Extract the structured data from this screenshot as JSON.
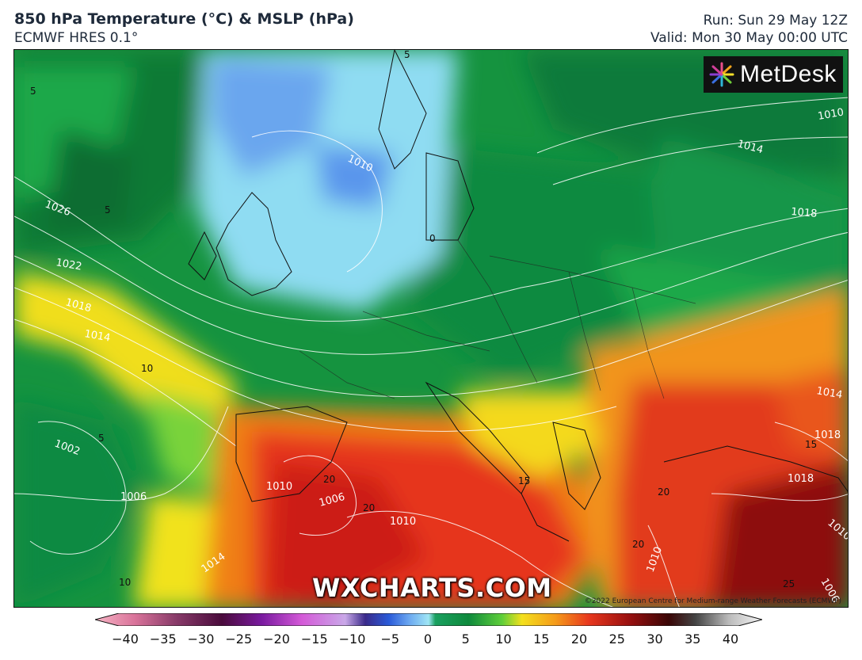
{
  "header": {
    "title": "850 hPa Temperature (°C) & MSLP (hPa)",
    "model": "ECMWF HRES 0.1°",
    "run": "Run: Sun 29 May 12Z",
    "valid": "Valid: Mon 30 May 00:00 UTC"
  },
  "branding": {
    "logo_text": "MetDesk",
    "watermark": "WXCHARTS.COM",
    "copyright": "©2022 European Centre for Medium-range Weather Forecasts (ECMWF)"
  },
  "colors": {
    "cold_blue": "#6aa6f0",
    "cyan": "#9fe6f5",
    "dark_green": "#0e7a3c",
    "green": "#1aa350",
    "light_green": "#5fcf3a",
    "yellow": "#f4e01c",
    "orange": "#f59b1a",
    "red": "#e8381e",
    "dark_red": "#9a1010"
  },
  "colorbar": {
    "ticks": [
      "−40",
      "−35",
      "−30",
      "−25",
      "−20",
      "−15",
      "−10",
      "−5",
      "0",
      "5",
      "10",
      "15",
      "20",
      "25",
      "30",
      "35",
      "40"
    ]
  },
  "isobar_labels": [
    {
      "text": "1010"
    },
    {
      "text": "1010"
    },
    {
      "text": "1014"
    },
    {
      "text": "1018"
    },
    {
      "text": "1026"
    },
    {
      "text": "1022"
    },
    {
      "text": "1018"
    },
    {
      "text": "1014"
    },
    {
      "text": "1002"
    },
    {
      "text": "1006"
    },
    {
      "text": "1014"
    },
    {
      "text": "1010"
    },
    {
      "text": "1006"
    },
    {
      "text": "1010"
    },
    {
      "text": "1014"
    },
    {
      "text": "1018"
    },
    {
      "text": "1018"
    },
    {
      "text": "1010"
    },
    {
      "text": "1010"
    },
    {
      "text": "1006"
    }
  ],
  "temperature_labels": [
    {
      "text": "5"
    },
    {
      "text": "5"
    },
    {
      "text": "5"
    },
    {
      "text": "10"
    },
    {
      "text": "10"
    },
    {
      "text": "20"
    },
    {
      "text": "20"
    },
    {
      "text": "15"
    },
    {
      "text": "20"
    },
    {
      "text": "20"
    },
    {
      "text": "15"
    },
    {
      "text": "0"
    },
    {
      "text": "25"
    },
    {
      "text": "5"
    }
  ]
}
